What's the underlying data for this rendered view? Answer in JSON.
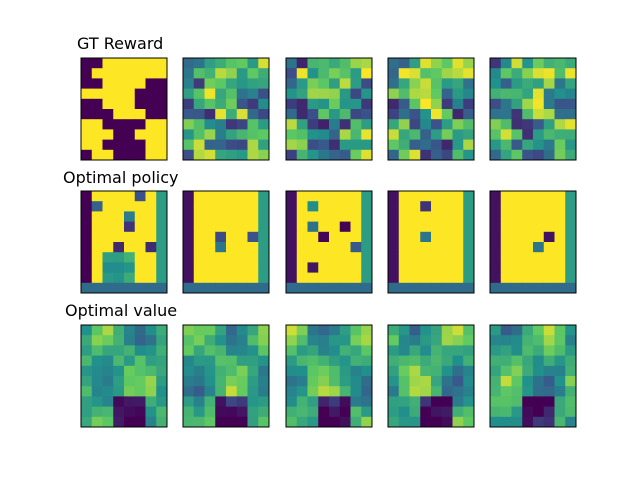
{
  "chart_data": {
    "type": "heatmap",
    "colormap": "viridis",
    "grid_size": [
      10,
      8
    ],
    "axes_ticks": "hidden",
    "rows": [
      {
        "title": "GT Reward",
        "panels": 5
      },
      {
        "title": "Optimal policy",
        "panels": 5
      },
      {
        "title": "Optimal value",
        "panels": 5
      }
    ],
    "colors": {
      "viridis_low": "#440154",
      "viridis_mid": "#21918c",
      "viridis_high": "#fde725",
      "frame": "#000000"
    }
  }
}
